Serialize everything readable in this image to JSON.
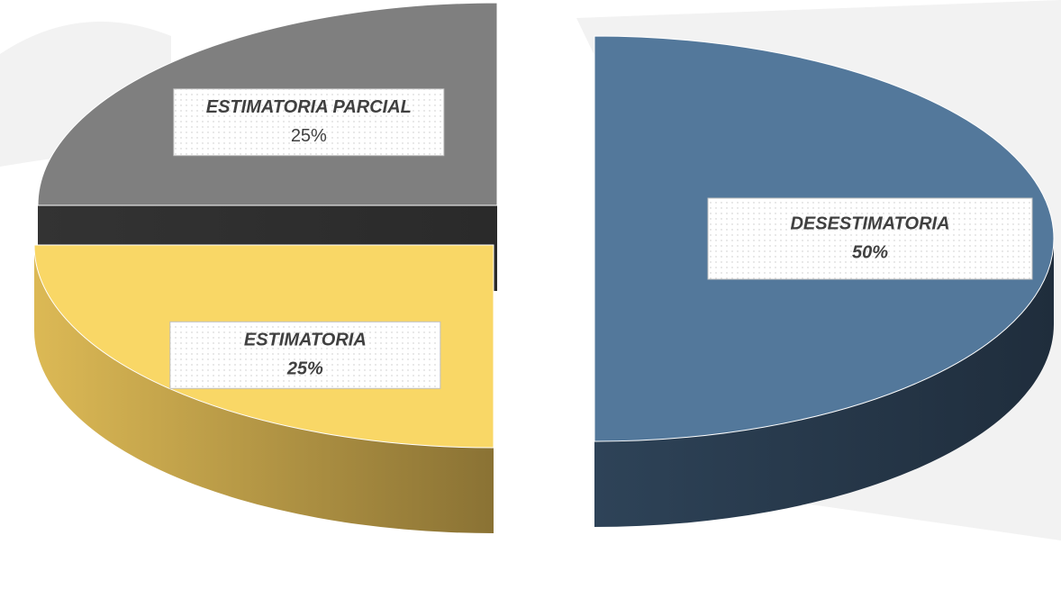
{
  "chart_data": {
    "type": "pie",
    "categories": [
      "DESESTIMATORIA",
      "ESTIMATORIA",
      "ESTIMATORIA PARCIAL"
    ],
    "values": [
      50,
      25,
      25
    ],
    "value_labels": [
      "50%",
      "25%",
      "25%"
    ],
    "colors": [
      "#53789b",
      "#f9d766",
      "#7f7f7f"
    ]
  }
}
